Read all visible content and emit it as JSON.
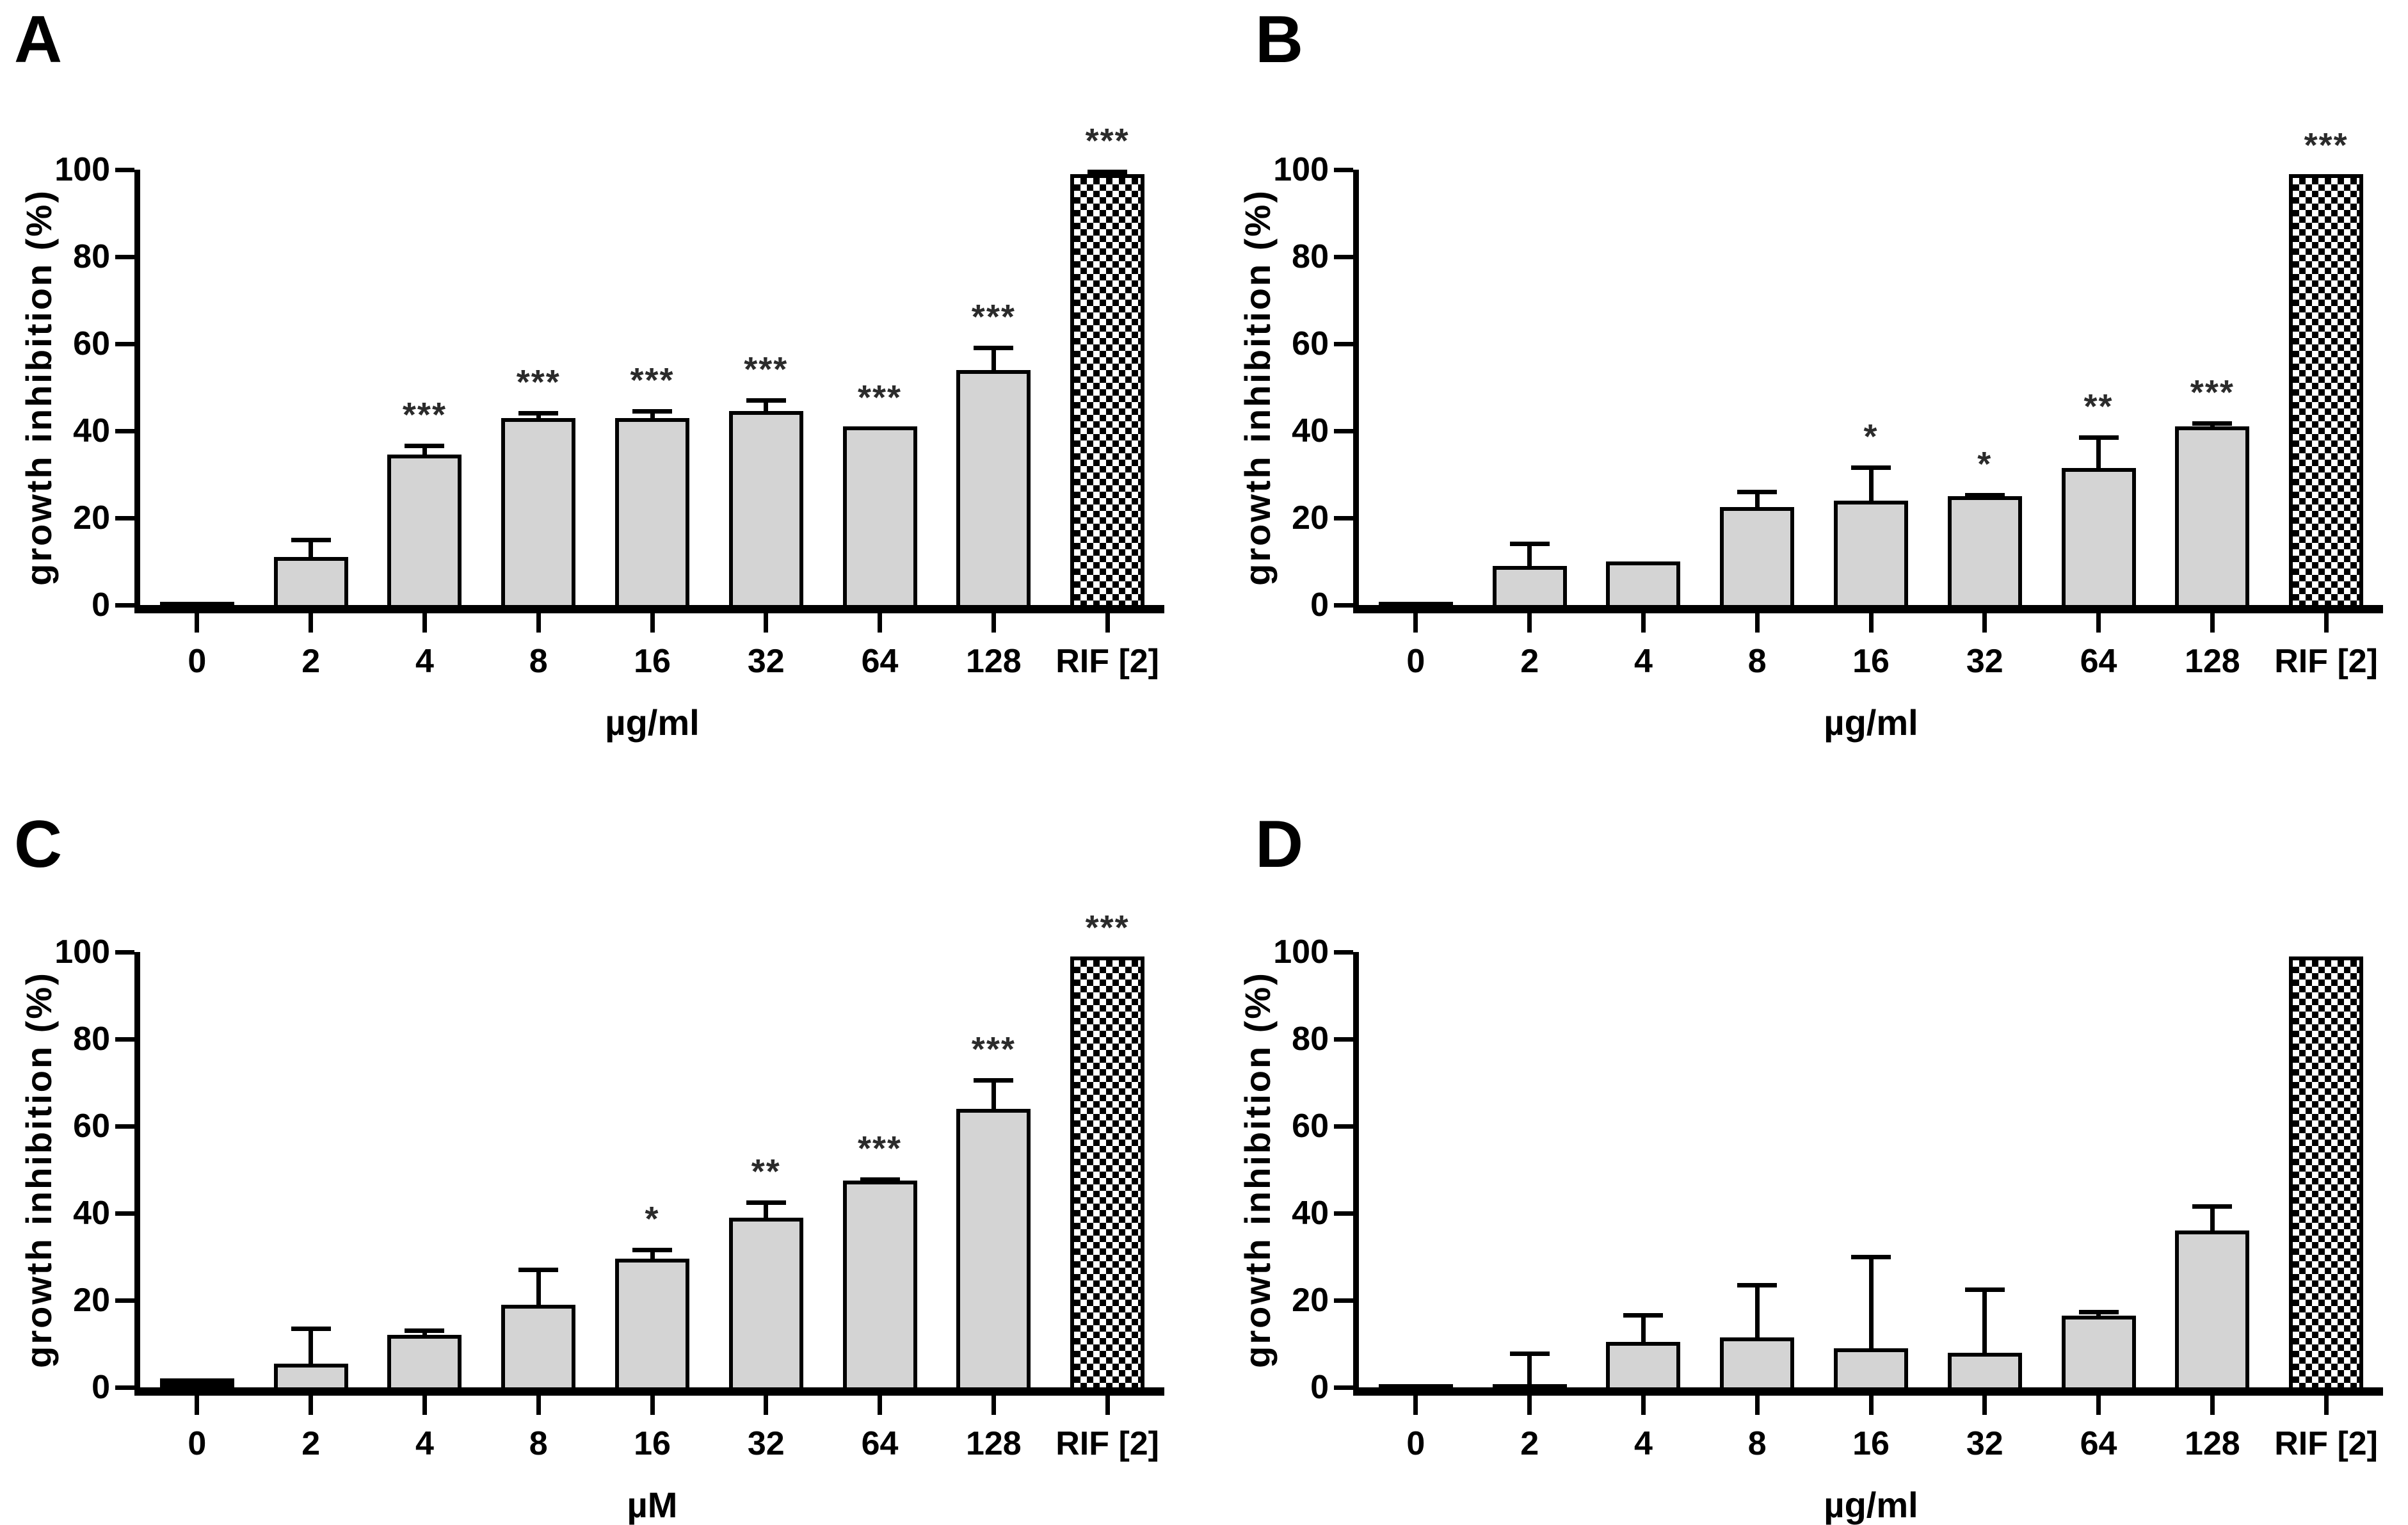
{
  "figure": {
    "background": "#ffffff",
    "bar_fill": "#d4d4d4",
    "bar_edge": "#000000",
    "control_bar_pattern": "black-white-checkerboard",
    "star_color": "#2b2b2b"
  },
  "chart_data": [
    {
      "panel": "A",
      "type": "bar",
      "xlabel": "µg/ml",
      "ylabel": "growth inhibition (%)",
      "ylim": [
        0,
        100
      ],
      "yticks": [
        0,
        20,
        40,
        60,
        80,
        100
      ],
      "grid": "off",
      "categories": [
        "0",
        "2",
        "4",
        "8",
        "16",
        "32",
        "64",
        "128",
        "RIF [2]"
      ],
      "values": [
        0.8,
        11,
        34.5,
        43,
        43,
        44.5,
        41,
        54,
        99
      ],
      "errors_plus": [
        0,
        4.5,
        2.5,
        1.5,
        2,
        3,
        0,
        5.5,
        1
      ],
      "significance": [
        "",
        "",
        "***",
        "***",
        "***",
        "***",
        "***",
        "***",
        "***"
      ],
      "bar_styles": [
        "black",
        "gray",
        "gray",
        "gray",
        "gray",
        "gray",
        "gray",
        "gray",
        "checker"
      ]
    },
    {
      "panel": "B",
      "type": "bar",
      "xlabel": "µg/ml",
      "ylabel": "growth inhibition (%)",
      "ylim": [
        0,
        100
      ],
      "yticks": [
        0,
        20,
        40,
        60,
        80,
        100
      ],
      "grid": "off",
      "categories": [
        "0",
        "2",
        "4",
        "8",
        "16",
        "32",
        "64",
        "128",
        "RIF [2]"
      ],
      "values": [
        0.7,
        9,
        10,
        22.5,
        24,
        25,
        31.5,
        41,
        99
      ],
      "errors_plus": [
        0,
        5.5,
        0,
        4,
        8,
        0.7,
        7.5,
        1.2,
        0
      ],
      "significance": [
        "",
        "",
        "",
        "",
        "*",
        "*",
        "**",
        "***",
        "***"
      ],
      "bar_styles": [
        "black",
        "gray",
        "gray",
        "gray",
        "gray",
        "gray",
        "gray",
        "gray",
        "checker"
      ]
    },
    {
      "panel": "C",
      "type": "bar",
      "xlabel": "µM",
      "ylabel": "growth inhibition (%)",
      "ylim": [
        0,
        100
      ],
      "yticks": [
        0,
        20,
        40,
        60,
        80,
        100
      ],
      "grid": "off",
      "categories": [
        "0",
        "2",
        "4",
        "8",
        "16",
        "32",
        "64",
        "128",
        "RIF [2]"
      ],
      "values": [
        2,
        5.5,
        12,
        19,
        29.5,
        39,
        47.5,
        64,
        99
      ],
      "errors_plus": [
        0,
        8.5,
        1.5,
        8.5,
        2.5,
        4,
        0.7,
        7,
        0
      ],
      "significance": [
        "",
        "",
        "",
        "",
        "*",
        "**",
        "***",
        "***",
        "***"
      ],
      "bar_styles": [
        "black",
        "gray",
        "gray",
        "gray",
        "gray",
        "gray",
        "gray",
        "gray",
        "checker"
      ]
    },
    {
      "panel": "D",
      "type": "bar",
      "xlabel": "µg/ml",
      "ylabel": "growth inhibition (%)",
      "ylim": [
        0,
        100
      ],
      "yticks": [
        0,
        20,
        40,
        60,
        80,
        100
      ],
      "grid": "off",
      "categories": [
        "0",
        "2",
        "4",
        "8",
        "16",
        "32",
        "64",
        "128",
        "RIF [2]"
      ],
      "values": [
        0.7,
        0.7,
        10.5,
        11.5,
        9,
        8,
        16.5,
        36,
        99
      ],
      "errors_plus": [
        0,
        7.5,
        6.5,
        12.5,
        21.5,
        15,
        1.3,
        6,
        0
      ],
      "significance": [
        "",
        "",
        "",
        "",
        "",
        "",
        "",
        "",
        ""
      ],
      "bar_styles": [
        "black",
        "black",
        "gray",
        "gray",
        "gray",
        "gray",
        "gray",
        "gray",
        "checker"
      ]
    }
  ]
}
